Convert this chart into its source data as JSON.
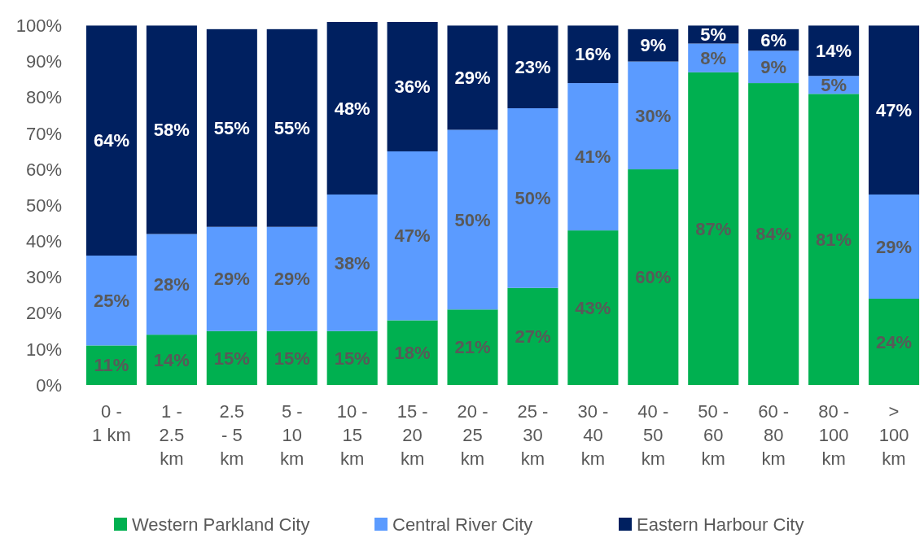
{
  "chart_data": {
    "type": "bar",
    "stacked": true,
    "categories": [
      "0 - 1 km",
      "1 - 2.5 km",
      "2.5 - 5 km",
      "5 - 10 km",
      "10 - 15 km",
      "15 - 20 km",
      "20 - 25 km",
      "25 - 30 km",
      "30 - 40 km",
      "40 - 50 km",
      "50 - 60 km",
      "60 - 80 km",
      "80 - 100 km",
      "> 100 km"
    ],
    "series": [
      {
        "name": "Western Parkland City",
        "color": "#00b050",
        "values": [
          11,
          14,
          15,
          15,
          15,
          18,
          21,
          27,
          43,
          60,
          87,
          84,
          81,
          24
        ],
        "value_labels": [
          "11%",
          "14%",
          "15%",
          "15%",
          "15%",
          "18%",
          "21%",
          "27%",
          "43%",
          "60%",
          "87%",
          "84%",
          "81%",
          "24%"
        ]
      },
      {
        "name": "Central River City",
        "color": "#5b9bff",
        "values": [
          25,
          28,
          29,
          29,
          38,
          47,
          50,
          50,
          41,
          30,
          8,
          9,
          5,
          29
        ],
        "value_labels": [
          "25%",
          "28%",
          "29%",
          "29%",
          "38%",
          "47%",
          "50%",
          "50%",
          "41%",
          "30%",
          "8%",
          "9%",
          "5%",
          "29%"
        ]
      },
      {
        "name": "Eastern Harbour City",
        "color": "#002060",
        "values": [
          64,
          58,
          55,
          55,
          48,
          36,
          29,
          23,
          16,
          9,
          5,
          6,
          14,
          47
        ],
        "value_labels": [
          "64%",
          "58%",
          "55%",
          "55%",
          "48%",
          "36%",
          "29%",
          "23%",
          "16%",
          "9%",
          "5%",
          "6%",
          "14%",
          "47%"
        ]
      }
    ],
    "ylim": [
      0,
      101
    ],
    "yticks": [
      {
        "value": 0,
        "label": "0%"
      },
      {
        "value": 10,
        "label": "10%"
      },
      {
        "value": 20,
        "label": "20%"
      },
      {
        "value": 30,
        "label": "30%"
      },
      {
        "value": 40,
        "label": "40%"
      },
      {
        "value": 50,
        "label": "50%"
      },
      {
        "value": 60,
        "label": "60%"
      },
      {
        "value": 70,
        "label": "70%"
      },
      {
        "value": 80,
        "label": "80%"
      },
      {
        "value": 90,
        "label": "90%"
      },
      {
        "value": 100,
        "label": "100%"
      }
    ],
    "legend": "bottom"
  }
}
